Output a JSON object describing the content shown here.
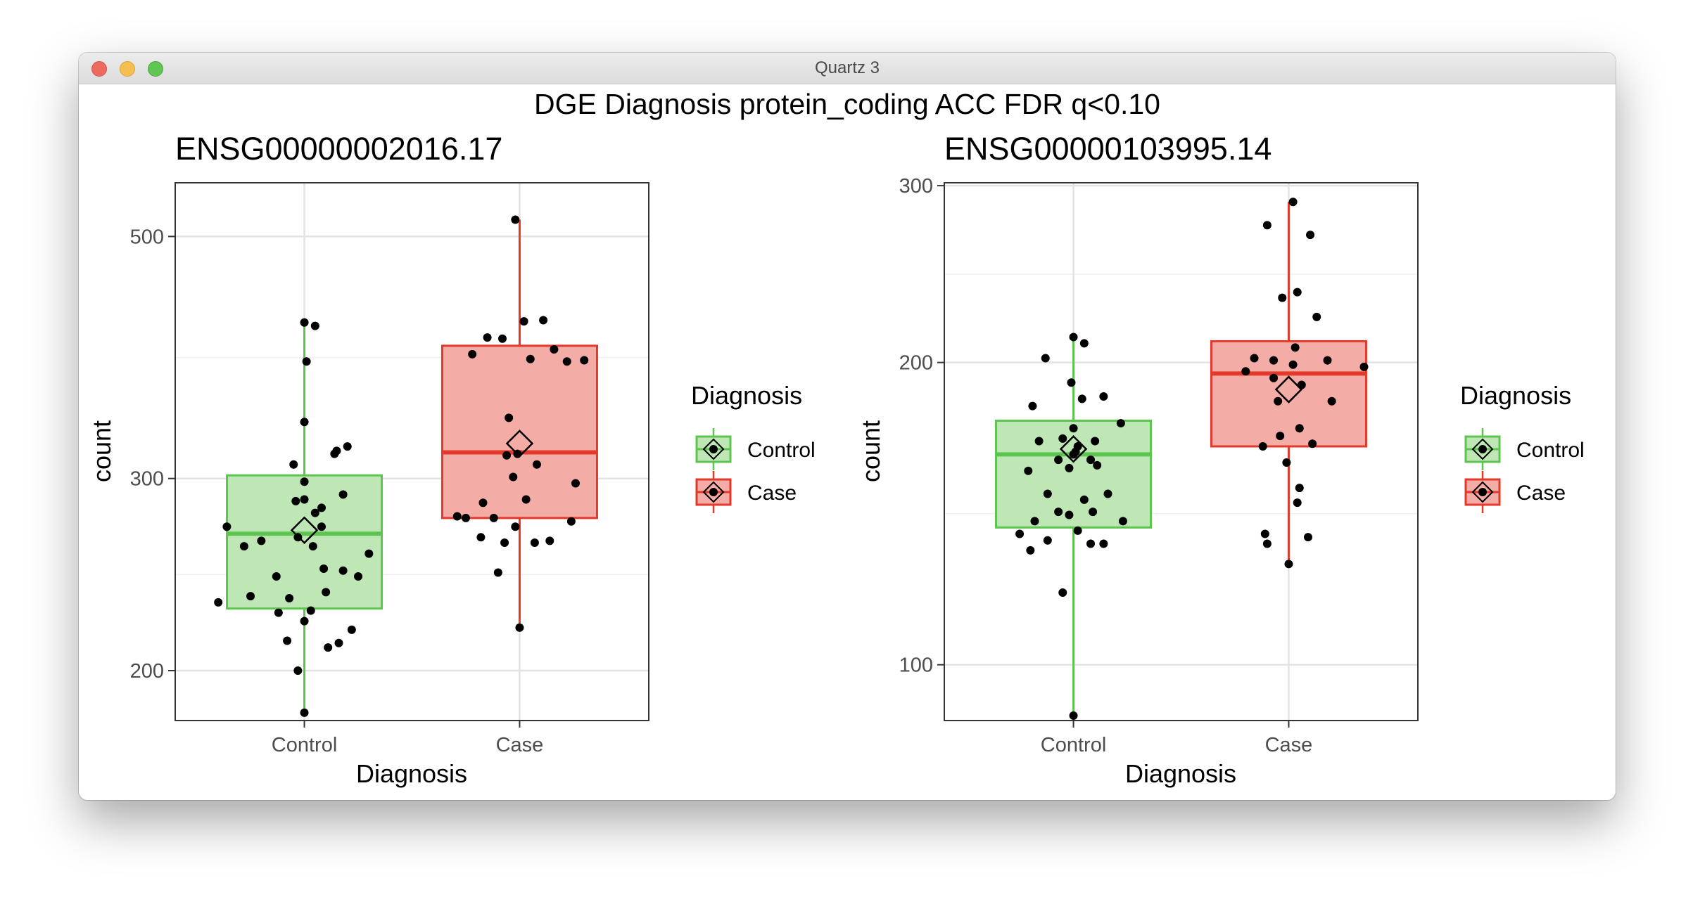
{
  "window": {
    "title": "Quartz 3",
    "buttons": [
      "close",
      "minimize",
      "maximize"
    ]
  },
  "figure_title": "DGE Diagnosis protein_coding ACC FDR q<0.10",
  "legend": {
    "title": "Diagnosis",
    "entries": [
      {
        "label": "Control",
        "color": "#5ec450",
        "fill": "#bfe7b6"
      },
      {
        "label": "Case",
        "color": "#e2392b",
        "fill": "#f4aca7"
      }
    ]
  },
  "chart_data": [
    {
      "type": "box",
      "title": "ENSG00000002016.17",
      "xlabel": "Diagnosis",
      "ylabel": "count",
      "categories": [
        "Control",
        "Case"
      ],
      "y_scale": "log",
      "ylim": [
        180,
        560
      ],
      "y_ticks": [
        200,
        300,
        500
      ],
      "y_tick_labels": [
        "200",
        "300",
        "500"
      ],
      "grid": true,
      "groups": [
        {
          "name": "Control",
          "color": "#5ec450",
          "fill": "#bfe7b6",
          "min": 183,
          "q1": 228,
          "median": 267,
          "q3": 302,
          "max": 417,
          "mean": 269,
          "points": [
            [
              0.64,
              271
            ],
            [
              0.72,
              260
            ],
            [
              0.8,
              263
            ],
            [
              0.87,
              244
            ],
            [
              0.97,
              265
            ],
            [
              1.09,
              248
            ],
            [
              0.6,
              231
            ],
            [
              0.75,
              234
            ],
            [
              0.88,
              226
            ],
            [
              0.93,
              233
            ],
            [
              1.05,
              279
            ],
            [
              1.08,
              271
            ],
            [
              1.03,
              227
            ],
            [
              1.3,
              256
            ],
            [
              1.18,
              290
            ],
            [
              0.92,
              213
            ],
            [
              0.97,
              200
            ],
            [
              1.04,
              260
            ],
            [
              1.0,
              222
            ],
            [
              1.22,
              218
            ],
            [
              1.25,
              244
            ],
            [
              1.1,
              236
            ],
            [
              1.08,
              282
            ],
            [
              1.18,
              247
            ],
            [
              1.14,
              316
            ],
            [
              1.0,
              298
            ],
            [
              1.15,
              318
            ],
            [
              0.95,
              309
            ],
            [
              1.01,
              384
            ],
            [
              1.0,
              338
            ],
            [
              1.0,
              183
            ],
            [
              1.0,
              417
            ],
            [
              1.05,
              414
            ],
            [
              1.0,
              287
            ],
            [
              1.2,
              321
            ],
            [
              0.96,
              286
            ],
            [
              1.16,
              212
            ],
            [
              1.11,
              210
            ]
          ]
        },
        {
          "name": "Case",
          "color": "#e2392b",
          "fill": "#f4aca7",
          "min": 219,
          "q1": 276,
          "median": 317,
          "q3": 397,
          "max": 518,
          "mean": 323,
          "points": [
            [
              1.98,
              518
            ],
            [
              2.0,
              219
            ],
            [
              2.02,
              418
            ],
            [
              2.11,
              419
            ],
            [
              2.16,
              394
            ],
            [
              1.92,
              403
            ],
            [
              1.85,
              404
            ],
            [
              1.78,
              390
            ],
            [
              2.05,
              386
            ],
            [
              2.22,
              384
            ],
            [
              2.3,
              385
            ],
            [
              1.88,
              276
            ],
            [
              1.75,
              276
            ],
            [
              1.93,
              262
            ],
            [
              1.94,
              315
            ],
            [
              1.97,
              301
            ],
            [
              1.99,
              316
            ],
            [
              2.03,
              287
            ],
            [
              1.98,
              271
            ],
            [
              1.9,
              246
            ],
            [
              2.26,
              297
            ],
            [
              2.24,
              274
            ],
            [
              2.07,
              262
            ],
            [
              1.82,
              265
            ],
            [
              1.71,
              277
            ],
            [
              2.14,
              263
            ],
            [
              1.83,
              285
            ],
            [
              1.95,
              341
            ],
            [
              2.08,
              309
            ]
          ]
        }
      ]
    },
    {
      "type": "box",
      "title": "ENSG00000103995.14",
      "xlabel": "Diagnosis",
      "ylabel": "count",
      "categories": [
        "Control",
        "Case"
      ],
      "y_scale": "log",
      "ylim": [
        88,
        302
      ],
      "y_ticks": [
        100,
        200,
        300
      ],
      "y_tick_labels": [
        "100",
        "200",
        "300"
      ],
      "grid": true,
      "groups": [
        {
          "name": "Control",
          "color": "#5ec450",
          "fill": "#bfe7b6",
          "min": 89,
          "q1": 137,
          "median": 162,
          "q3": 175,
          "max": 212,
          "mean": 164,
          "points": [
            [
              1.0,
              212
            ],
            [
              1.05,
              209
            ],
            [
              0.87,
              202
            ],
            [
              0.99,
              191
            ],
            [
              1.04,
              184
            ],
            [
              1.14,
              185
            ],
            [
              0.81,
              181
            ],
            [
              0.84,
              167
            ],
            [
              1.1,
              167
            ],
            [
              1.0,
              172
            ],
            [
              1.22,
              174
            ],
            [
              0.95,
              168
            ],
            [
              1.02,
              165
            ],
            [
              1.08,
              160
            ],
            [
              0.93,
              160
            ],
            [
              0.98,
              157
            ],
            [
              1.0,
              162
            ],
            [
              1.11,
              158
            ],
            [
              1.05,
              146
            ],
            [
              0.79,
              156
            ],
            [
              0.88,
              148
            ],
            [
              1.16,
              148
            ],
            [
              0.82,
              139
            ],
            [
              0.93,
              142
            ],
            [
              0.98,
              141
            ],
            [
              1.02,
              136
            ],
            [
              1.08,
              132
            ],
            [
              0.75,
              135
            ],
            [
              0.8,
              130
            ],
            [
              0.88,
              133
            ],
            [
              1.09,
              142
            ],
            [
              1.23,
              139
            ],
            [
              0.95,
              118
            ],
            [
              1.0,
              89
            ],
            [
              1.14,
              132
            ],
            [
              1.01,
              163
            ]
          ]
        },
        {
          "name": "Case",
          "color": "#e2392b",
          "fill": "#f4aca7",
          "min": 126,
          "q1": 165,
          "median": 195,
          "q3": 210,
          "max": 289,
          "mean": 188,
          "points": [
            [
              2.02,
              289
            ],
            [
              1.9,
              274
            ],
            [
              2.1,
              268
            ],
            [
              1.97,
              232
            ],
            [
              2.13,
              222
            ],
            [
              2.04,
              235
            ],
            [
              2.03,
              207
            ],
            [
              1.84,
              202
            ],
            [
              1.93,
              201
            ],
            [
              2.18,
              201
            ],
            [
              2.35,
              198
            ],
            [
              1.8,
              196
            ],
            [
              1.93,
              193
            ],
            [
              2.06,
              190
            ],
            [
              2.02,
              199
            ],
            [
              1.95,
              183
            ],
            [
              2.2,
              183
            ],
            [
              1.96,
              169
            ],
            [
              2.05,
              172
            ],
            [
              2.11,
              166
            ],
            [
              1.88,
              165
            ],
            [
              1.99,
              159
            ],
            [
              2.04,
              145
            ],
            [
              1.89,
              135
            ],
            [
              1.9,
              132
            ],
            [
              2.09,
              134
            ],
            [
              2.0,
              126
            ],
            [
              2.05,
              150
            ]
          ]
        }
      ]
    }
  ]
}
